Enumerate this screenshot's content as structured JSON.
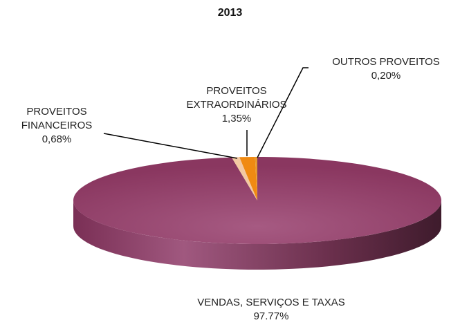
{
  "chart_data": {
    "type": "pie",
    "title": "2013",
    "categories": [
      "VENDAS, SERVIÇOS E TAXAS",
      "PROVEITOS FINANCEIROS",
      "PROVEITOS EXTRAORDINÁRIOS",
      "OUTROS PROVEITOS"
    ],
    "values": [
      97.77,
      0.68,
      1.35,
      0.2
    ],
    "value_labels": [
      "97.77%",
      "0,68%",
      "1,35%",
      "0,20%"
    ],
    "colors": [
      "#8c3862",
      "#f3c9a2",
      "#f08a12",
      "#e79a2e"
    ]
  }
}
